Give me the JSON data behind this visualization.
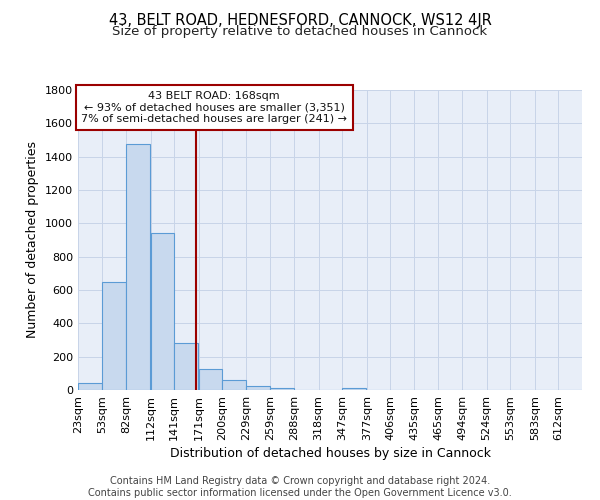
{
  "title1": "43, BELT ROAD, HEDNESFORD, CANNOCK, WS12 4JR",
  "title2": "Size of property relative to detached houses in Cannock",
  "xlabel": "Distribution of detached houses by size in Cannock",
  "ylabel": "Number of detached properties",
  "footer1": "Contains HM Land Registry data © Crown copyright and database right 2024.",
  "footer2": "Contains public sector information licensed under the Open Government Licence v3.0.",
  "annotation_line1": "43 BELT ROAD: 168sqm",
  "annotation_line2": "← 93% of detached houses are smaller (3,351)",
  "annotation_line3": "7% of semi-detached houses are larger (241) →",
  "bar_labels": [
    "23sqm",
    "53sqm",
    "82sqm",
    "112sqm",
    "141sqm",
    "171sqm",
    "200sqm",
    "229sqm",
    "259sqm",
    "288sqm",
    "318sqm",
    "347sqm",
    "377sqm",
    "406sqm",
    "435sqm",
    "465sqm",
    "494sqm",
    "524sqm",
    "553sqm",
    "583sqm",
    "612sqm"
  ],
  "bar_values": [
    40,
    648,
    1474,
    940,
    285,
    125,
    62,
    22,
    10,
    0,
    0,
    10,
    0,
    0,
    0,
    0,
    0,
    0,
    0,
    0,
    0
  ],
  "bin_starts": [
    23,
    53,
    82,
    112,
    141,
    171,
    200,
    229,
    259,
    288,
    318,
    347,
    377,
    406,
    435,
    465,
    494,
    524,
    553,
    583,
    612
  ],
  "bin_width": 29,
  "bar_color": "#c8d9ee",
  "bar_edge_color": "#5b9bd5",
  "vline_x": 168,
  "vline_color": "#9b0000",
  "ylim": [
    0,
    1800
  ],
  "yticks": [
    0,
    200,
    400,
    600,
    800,
    1000,
    1200,
    1400,
    1600,
    1800
  ],
  "grid_color": "#c8d4e8",
  "bg_color": "#e8eef8",
  "annotation_box_color": "#9b0000",
  "title1_fontsize": 10.5,
  "title2_fontsize": 9.5,
  "axis_label_fontsize": 9,
  "tick_fontsize": 8,
  "annotation_fontsize": 8,
  "footer_fontsize": 7
}
